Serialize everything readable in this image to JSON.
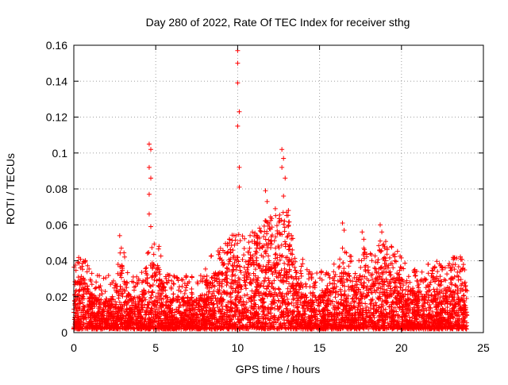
{
  "chart_data": {
    "type": "scatter",
    "title": "Day 280 of 2022, Rate Of TEC Index for receiver sthg",
    "xlabel": "GPS time / hours",
    "ylabel": "ROTI / TECUs",
    "xlim": [
      0,
      25
    ],
    "ylim": [
      0,
      0.16
    ],
    "xticks": [
      0,
      5,
      10,
      15,
      20,
      25
    ],
    "xtick_labels": [
      "0",
      "5",
      "10",
      "15",
      "20",
      "25"
    ],
    "yticks": [
      0,
      0.02,
      0.04,
      0.06,
      0.08,
      0.1,
      0.12,
      0.14,
      0.16
    ],
    "ytick_labels": [
      "0",
      "0.02",
      "0.04",
      "0.06",
      "0.08",
      "0.1",
      "0.12",
      "0.14",
      "0.16"
    ],
    "grid": true,
    "marker": "+",
    "marker_color": "#ff0000",
    "data_time_range": [
      0,
      24
    ],
    "baseline_band": [
      0.002,
      0.02
    ],
    "series": [
      {
        "name": "ROTI",
        "notable_points": [
          {
            "x": 0.4,
            "y": 0.036
          },
          {
            "x": 2.8,
            "y": 0.054
          },
          {
            "x": 2.9,
            "y": 0.047
          },
          {
            "x": 4.6,
            "y": 0.105
          },
          {
            "x": 4.7,
            "y": 0.102
          },
          {
            "x": 4.6,
            "y": 0.092
          },
          {
            "x": 4.7,
            "y": 0.086
          },
          {
            "x": 4.6,
            "y": 0.077
          },
          {
            "x": 4.6,
            "y": 0.066
          },
          {
            "x": 4.7,
            "y": 0.059
          },
          {
            "x": 5.2,
            "y": 0.048
          },
          {
            "x": 10.0,
            "y": 0.157
          },
          {
            "x": 10.0,
            "y": 0.15
          },
          {
            "x": 10.0,
            "y": 0.139
          },
          {
            "x": 10.1,
            "y": 0.123
          },
          {
            "x": 10.0,
            "y": 0.115
          },
          {
            "x": 10.1,
            "y": 0.092
          },
          {
            "x": 10.1,
            "y": 0.081
          },
          {
            "x": 10.9,
            "y": 0.056
          },
          {
            "x": 11.7,
            "y": 0.079
          },
          {
            "x": 11.8,
            "y": 0.073
          },
          {
            "x": 12.3,
            "y": 0.069
          },
          {
            "x": 12.7,
            "y": 0.102
          },
          {
            "x": 12.8,
            "y": 0.097
          },
          {
            "x": 12.7,
            "y": 0.092
          },
          {
            "x": 12.9,
            "y": 0.086
          },
          {
            "x": 12.8,
            "y": 0.076
          },
          {
            "x": 13.1,
            "y": 0.068
          },
          {
            "x": 16.4,
            "y": 0.061
          },
          {
            "x": 16.5,
            "y": 0.057
          },
          {
            "x": 16.4,
            "y": 0.047
          },
          {
            "x": 17.6,
            "y": 0.056
          },
          {
            "x": 17.7,
            "y": 0.052
          },
          {
            "x": 18.1,
            "y": 0.044
          },
          {
            "x": 18.7,
            "y": 0.06
          },
          {
            "x": 18.8,
            "y": 0.056
          },
          {
            "x": 18.7,
            "y": 0.051
          },
          {
            "x": 19.6,
            "y": 0.04
          },
          {
            "x": 22.0,
            "y": 0.036
          },
          {
            "x": 23.7,
            "y": 0.035
          }
        ]
      }
    ]
  }
}
